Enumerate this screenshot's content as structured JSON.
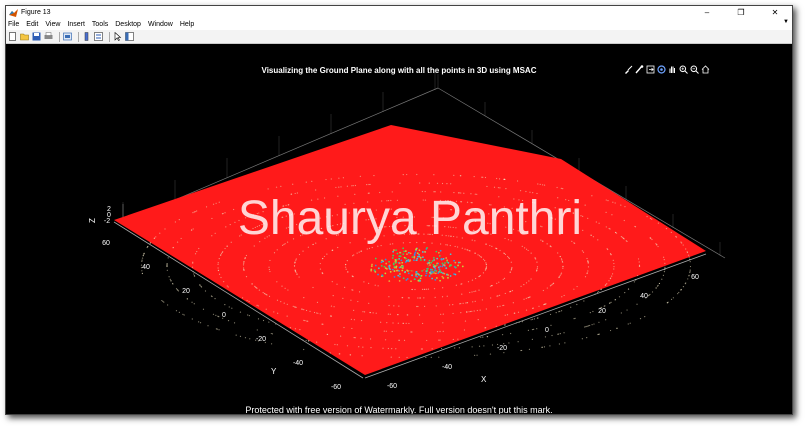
{
  "window": {
    "title": "Figure 13",
    "controls": [
      "–",
      "❐",
      "✕"
    ]
  },
  "menu": [
    "File",
    "Edit",
    "View",
    "Insert",
    "Tools",
    "Desktop",
    "Window",
    "Help"
  ],
  "toolbar": [
    "new-figure-icon",
    "open-icon",
    "save-icon",
    "print-icon",
    "link-icon",
    "insert-colorbar-icon",
    "insert-legend-icon",
    "edit-plot-arrow-icon",
    "property-inspector-icon"
  ],
  "axes_toolbar": [
    "brush-icon",
    "data-tips-icon",
    "export-icon",
    "rotate-icon",
    "pan-icon",
    "zoom-in-icon",
    "zoom-out-icon",
    "home-icon"
  ],
  "colors": {
    "plane": "#ff1a1a",
    "background": "#000000",
    "axis": "#ffffff"
  },
  "chart_data": {
    "type": "scatter",
    "title": "Visualizing the Ground Plane along with all the points in 3D using MSAC",
    "xlabel": "X",
    "ylabel": "Y",
    "zlabel": "Z",
    "x_ticks": [
      "-60",
      "-40",
      "-20",
      "0",
      "20",
      "40",
      "60"
    ],
    "y_ticks": [
      "-60",
      "-40",
      "-20",
      "0",
      "20",
      "40",
      "60"
    ],
    "z_ticks": [
      "-2",
      "0",
      "2"
    ],
    "xlim": [
      -60,
      60
    ],
    "ylim": [
      -60,
      60
    ],
    "grid": true
  },
  "watermark": "Shaurya Panthri",
  "footer_note": "Protected with free version of Watermarkly. Full version doesn't put this mark."
}
